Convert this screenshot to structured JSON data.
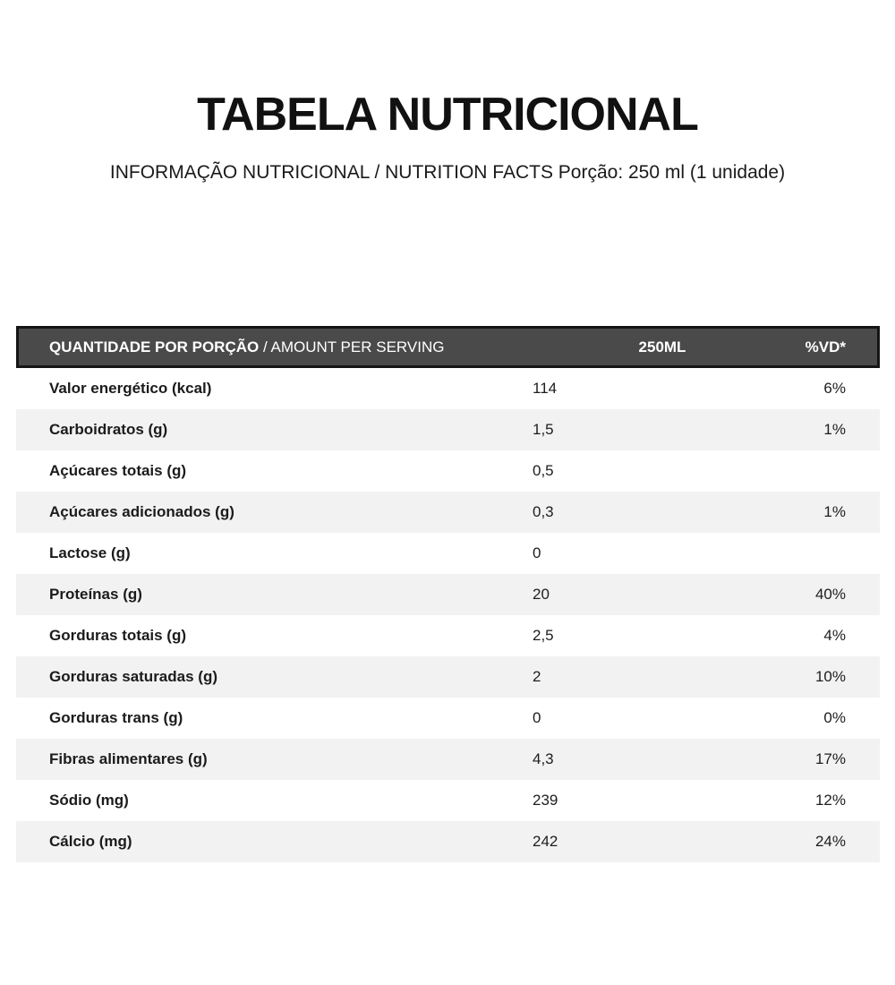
{
  "title": "TABELA NUTRICIONAL",
  "subtitle": "INFORMAÇÃO NUTRICIONAL / NUTRITION FACTS Porção: 250 ml (1 unidade)",
  "colors": {
    "header_bg": "#4a4a4a",
    "header_border": "#151515",
    "stripe": "#f2f2f2",
    "header_text": "#ffffff",
    "body_text": "#1d1d1d"
  },
  "table": {
    "header": {
      "col1_bold": "QUANTIDADE POR PORÇÃO ",
      "col1_regular": "/ AMOUNT PER SERVING",
      "col2": "250ML",
      "col3": "%VD*"
    },
    "rows": [
      {
        "label": "Valor energético (kcal)",
        "amount": "114",
        "dv": "6%"
      },
      {
        "label": "Carboidratos (g)",
        "amount": "1,5",
        "dv": "1%"
      },
      {
        "label": "Açúcares totais (g)",
        "amount": "0,5",
        "dv": ""
      },
      {
        "label": "Açúcares adicionados (g)",
        "amount": "0,3",
        "dv": "1%"
      },
      {
        "label": "Lactose (g)",
        "amount": "0",
        "dv": ""
      },
      {
        "label": "Proteínas (g)",
        "amount": "20",
        "dv": "40%"
      },
      {
        "label": "Gorduras totais (g)",
        "amount": "2,5",
        "dv": "4%"
      },
      {
        "label": "Gorduras saturadas (g)",
        "amount": "2",
        "dv": "10%"
      },
      {
        "label": "Gorduras trans (g)",
        "amount": "0",
        "dv": "0%"
      },
      {
        "label": "Fibras alimentares (g)",
        "amount": "4,3",
        "dv": "17%"
      },
      {
        "label": "Sódio (mg)",
        "amount": "239",
        "dv": "12%"
      },
      {
        "label": "Cálcio (mg)",
        "amount": "242",
        "dv": "24%"
      }
    ]
  }
}
